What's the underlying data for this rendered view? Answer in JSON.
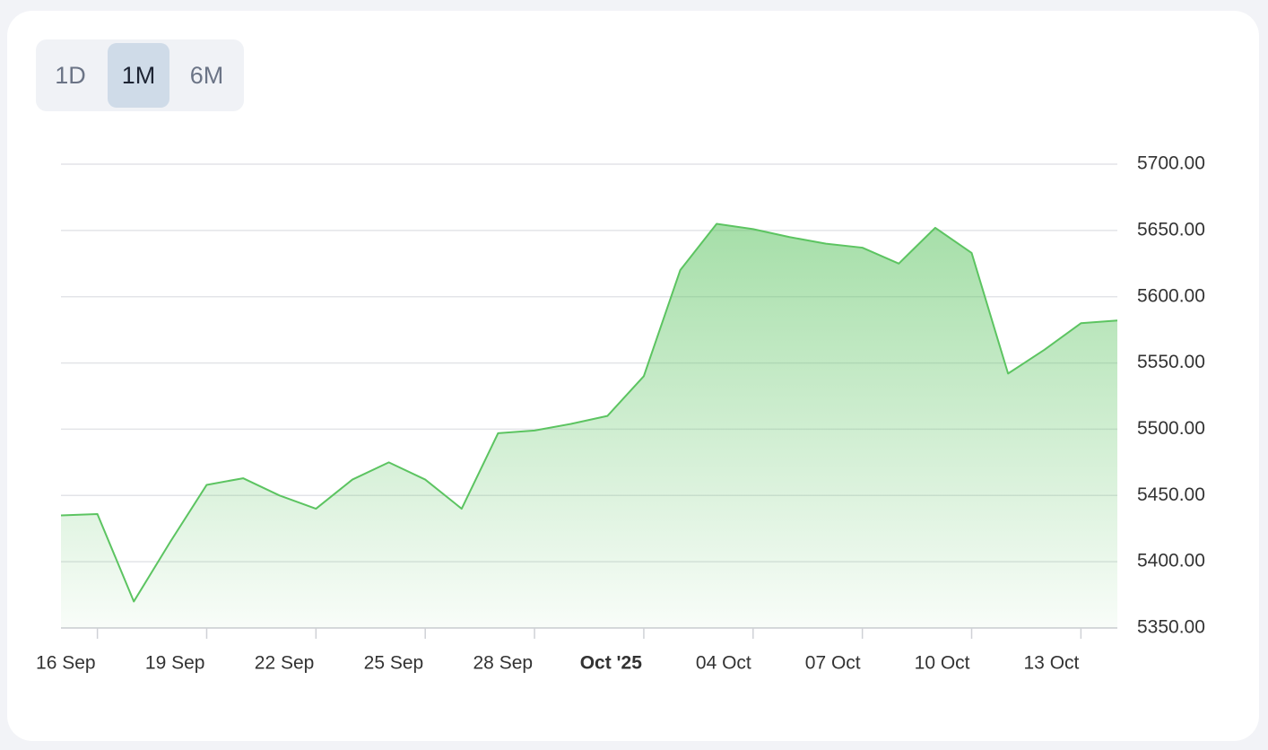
{
  "range_selector": {
    "options": [
      "1D",
      "1M",
      "6M"
    ],
    "selected": "1M"
  },
  "chart_data": {
    "type": "area",
    "color": "#5cc461",
    "x": [
      "2025-09-15",
      "2025-09-16",
      "2025-09-17",
      "2025-09-18",
      "2025-09-19",
      "2025-09-20",
      "2025-09-21",
      "2025-09-22",
      "2025-09-23",
      "2025-09-24",
      "2025-09-25",
      "2025-09-26",
      "2025-09-27",
      "2025-09-28",
      "2025-09-29",
      "2025-09-30",
      "2025-10-01",
      "2025-10-02",
      "2025-10-03",
      "2025-10-04",
      "2025-10-05",
      "2025-10-06",
      "2025-10-07",
      "2025-10-08",
      "2025-10-09",
      "2025-10-10",
      "2025-10-11",
      "2025-10-12",
      "2025-10-13",
      "2025-10-14"
    ],
    "values": [
      5435,
      5436,
      5370,
      5415,
      5458,
      5463,
      5450,
      5440,
      5462,
      5475,
      5462,
      5440,
      5497,
      5499,
      5504,
      5510,
      5540,
      5620,
      5655,
      5651,
      5645,
      5640,
      5637,
      5625,
      5652,
      5633,
      5542,
      5560,
      5580,
      5582
    ],
    "xlim": [
      "2025-09-15",
      "2025-10-14"
    ],
    "xticks": [
      {
        "value": "2025-09-16",
        "label": "16 Sep"
      },
      {
        "value": "2025-09-19",
        "label": "19 Sep"
      },
      {
        "value": "2025-09-22",
        "label": "22 Sep"
      },
      {
        "value": "2025-09-25",
        "label": "25 Sep"
      },
      {
        "value": "2025-09-28",
        "label": "28 Sep"
      },
      {
        "value": "2025-10-01",
        "label": "Oct '25"
      },
      {
        "value": "2025-10-04",
        "label": "04 Oct"
      },
      {
        "value": "2025-10-07",
        "label": "07 Oct"
      },
      {
        "value": "2025-10-10",
        "label": "10 Oct"
      },
      {
        "value": "2025-10-13",
        "label": "13 Oct"
      }
    ],
    "ylim": [
      5350,
      5700
    ],
    "yticks": [
      {
        "value": 5350,
        "label": "5350.00"
      },
      {
        "value": 5400,
        "label": "5400.00"
      },
      {
        "value": 5450,
        "label": "5450.00"
      },
      {
        "value": 5500,
        "label": "5500.00"
      },
      {
        "value": 5550,
        "label": "5550.00"
      },
      {
        "value": 5600,
        "label": "5600.00"
      },
      {
        "value": 5650,
        "label": "5650.00"
      },
      {
        "value": 5700,
        "label": "5700.00"
      }
    ],
    "grid": true
  }
}
